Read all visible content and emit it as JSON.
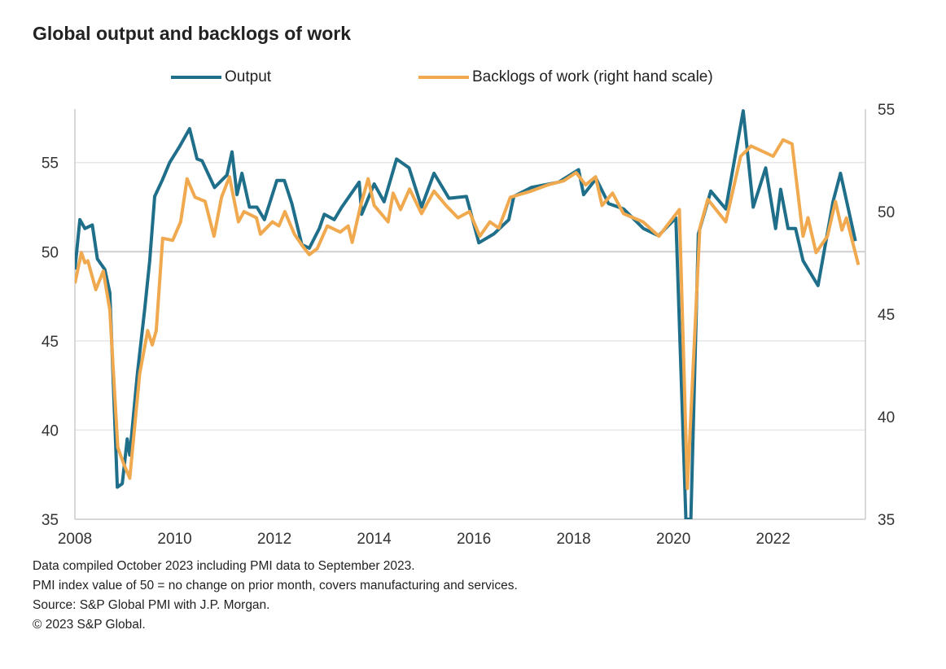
{
  "chart_data": {
    "type": "line",
    "title": "Global output and backlogs of work",
    "x_ticks": [
      "2008",
      "2010",
      "2012",
      "2014",
      "2016",
      "2018",
      "2020",
      "2022"
    ],
    "xlim": [
      2008,
      2023.85
    ],
    "y_left": {
      "lim": [
        35,
        58
      ],
      "ticks": [
        "35",
        "40",
        "45",
        "50",
        "55"
      ]
    },
    "y_right": {
      "lim": [
        35,
        55
      ],
      "ticks": [
        "35",
        "40",
        "45",
        "50",
        "55"
      ]
    },
    "reference_line": 50,
    "grid": true,
    "legend_position": "top",
    "series": [
      {
        "name": "Output",
        "axis": "left",
        "color": "#1f6f8b",
        "x": [
          2008.0,
          2008.1,
          2008.2,
          2008.35,
          2008.45,
          2008.6,
          2008.7,
          2008.85,
          2008.95,
          2009.05,
          2009.1,
          2009.25,
          2009.4,
          2009.5,
          2009.6,
          2009.75,
          2009.9,
          2010.1,
          2010.3,
          2010.45,
          2010.55,
          2010.8,
          2011.05,
          2011.15,
          2011.25,
          2011.35,
          2011.5,
          2011.65,
          2011.8,
          2012.05,
          2012.2,
          2012.35,
          2012.55,
          2012.7,
          2012.9,
          2013.0,
          2013.2,
          2013.35,
          2013.7,
          2013.75,
          2014.0,
          2014.2,
          2014.45,
          2014.7,
          2014.95,
          2015.2,
          2015.5,
          2015.85,
          2016.1,
          2016.4,
          2016.7,
          2016.8,
          2017.15,
          2017.7,
          2018.1,
          2018.2,
          2018.45,
          2018.7,
          2019.0,
          2019.4,
          2019.7,
          2020.05,
          2020.25,
          2020.35,
          2020.5,
          2020.75,
          2021.05,
          2021.4,
          2021.6,
          2021.85,
          2022.05,
          2022.15,
          2022.3,
          2022.45,
          2022.6,
          2022.9,
          2023.2,
          2023.35,
          2023.65
        ],
        "y": [
          49.0,
          51.8,
          51.3,
          51.5,
          49.6,
          49.0,
          47.7,
          36.8,
          37.0,
          39.5,
          38.6,
          43.1,
          46.8,
          49.5,
          53.1,
          54.0,
          55.0,
          55.9,
          56.9,
          55.2,
          55.1,
          53.6,
          54.3,
          55.6,
          53.2,
          54.4,
          52.5,
          52.5,
          51.8,
          54.0,
          54.0,
          52.7,
          50.4,
          50.2,
          51.3,
          52.1,
          51.8,
          52.5,
          53.9,
          52.1,
          53.8,
          52.8,
          55.2,
          54.7,
          52.5,
          54.4,
          53.0,
          53.1,
          50.5,
          51.0,
          51.8,
          53.1,
          53.6,
          53.9,
          54.6,
          53.2,
          54.1,
          52.7,
          52.4,
          51.3,
          50.9,
          51.9,
          35.0,
          35.0,
          51.0,
          53.4,
          52.4,
          57.9,
          52.5,
          54.7,
          51.3,
          53.5,
          51.3,
          51.3,
          49.5,
          48.1,
          52.8,
          54.4,
          50.6
        ]
      },
      {
        "name": "Backlogs of work (right hand scale)",
        "axis": "right",
        "color": "#f0a94e",
        "x": [
          2008.0,
          2008.13,
          2008.2,
          2008.26,
          2008.42,
          2008.57,
          2008.7,
          2008.86,
          2008.98,
          2009.1,
          2009.3,
          2009.46,
          2009.55,
          2009.63,
          2009.76,
          2009.96,
          2010.12,
          2010.25,
          2010.41,
          2010.61,
          2010.79,
          2010.94,
          2011.1,
          2011.28,
          2011.39,
          2011.64,
          2011.72,
          2011.96,
          2012.09,
          2012.21,
          2012.4,
          2012.57,
          2012.7,
          2012.86,
          2013.06,
          2013.32,
          2013.48,
          2013.56,
          2013.73,
          2013.88,
          2014.0,
          2014.28,
          2014.38,
          2014.53,
          2014.71,
          2014.95,
          2015.2,
          2015.44,
          2015.68,
          2015.91,
          2016.12,
          2016.32,
          2016.5,
          2016.73,
          2017.15,
          2017.48,
          2017.8,
          2018.05,
          2018.24,
          2018.44,
          2018.57,
          2018.78,
          2019.0,
          2019.39,
          2019.71,
          2020.12,
          2020.28,
          2020.53,
          2020.69,
          2021.05,
          2021.35,
          2021.56,
          2022.0,
          2022.2,
          2022.38,
          2022.6,
          2022.7,
          2022.86,
          2023.09,
          2023.25,
          2023.38,
          2023.47,
          2023.71
        ],
        "y": [
          46.5,
          48.0,
          47.5,
          47.6,
          46.2,
          47.1,
          45.2,
          38.5,
          37.7,
          37.0,
          42.1,
          44.2,
          43.5,
          44.2,
          48.7,
          48.6,
          49.5,
          51.6,
          50.7,
          50.5,
          48.8,
          50.7,
          51.7,
          49.5,
          50.0,
          49.7,
          48.9,
          49.5,
          49.3,
          50.0,
          48.9,
          48.3,
          47.9,
          48.2,
          49.3,
          49.0,
          49.3,
          48.5,
          50.3,
          51.6,
          50.3,
          49.5,
          50.9,
          50.1,
          51.1,
          49.9,
          51.0,
          50.3,
          49.7,
          50.0,
          48.8,
          49.5,
          49.2,
          50.7,
          51.0,
          51.3,
          51.5,
          51.9,
          51.3,
          51.7,
          50.3,
          50.9,
          49.9,
          49.5,
          48.8,
          50.1,
          36.5,
          49.2,
          50.6,
          49.5,
          52.7,
          53.2,
          52.7,
          53.5,
          53.3,
          48.8,
          49.7,
          48.0,
          48.8,
          50.5,
          49.1,
          49.7,
          47.4
        ]
      }
    ]
  },
  "legend": {
    "output": "Output",
    "backlogs": "Backlogs of work (right hand scale)"
  },
  "notes": [
    "Data compiled October 2023 including PMI data to September 2023.",
    "PMI index value of 50 = no change on prior month, covers manufacturing and services.",
    "Source: S&P Global PMI with J.P. Morgan.",
    "© 2023 S&P Global."
  ]
}
